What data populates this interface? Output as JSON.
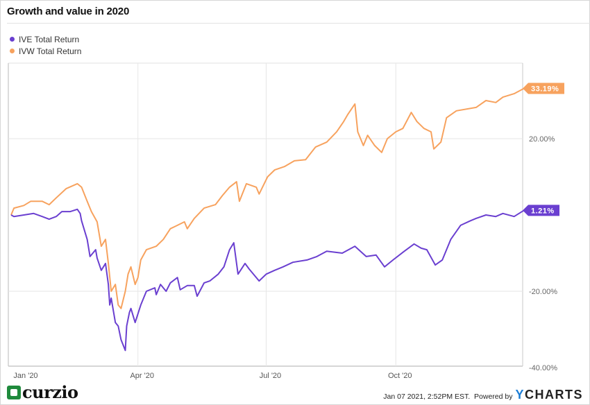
{
  "title": "Growth and value in 2020",
  "footer": {
    "timestamp": "Jan 07 2021, 2:52PM EST.",
    "powered_by": "Powered by",
    "brand_y": "Y",
    "brand_rest": "CHARTS",
    "logo_text": "curzio"
  },
  "chart_data": {
    "type": "line",
    "title": "Growth and value in 2020",
    "xlabel": "",
    "ylabel": "",
    "x_ticks": [
      {
        "date": "2020-01-01",
        "label": "Jan '20"
      },
      {
        "date": "2020-04-01",
        "label": "Apr '20"
      },
      {
        "date": "2020-07-01",
        "label": "Jul '20"
      },
      {
        "date": "2020-10-01",
        "label": "Oct '20"
      }
    ],
    "y_ticks": [
      {
        "value": 20,
        "label": "20.00%"
      },
      {
        "value": -20,
        "label": "-20.00%"
      },
      {
        "value": -40,
        "label": "-40.00%"
      }
    ],
    "ylim": [
      -40,
      40
    ],
    "xlim": [
      "2019-12-30",
      "2021-01-01"
    ],
    "grid": true,
    "legend_position": "top-left",
    "series": [
      {
        "name": "IVE Total Return",
        "color": "#6a3fd0",
        "end_label": "1.21%",
        "points": [
          [
            "2020-01-02",
            0
          ],
          [
            "2020-01-04",
            -0.4
          ],
          [
            "2020-01-11",
            0
          ],
          [
            "2020-01-18",
            0.4
          ],
          [
            "2020-01-24",
            -0.4
          ],
          [
            "2020-01-29",
            -1.1
          ],
          [
            "2020-02-03",
            -0.4
          ],
          [
            "2020-02-07",
            0.9
          ],
          [
            "2020-02-13",
            0.9
          ],
          [
            "2020-02-18",
            1.5
          ],
          [
            "2020-02-20",
            0.4
          ],
          [
            "2020-02-21",
            -1.5
          ],
          [
            "2020-02-25",
            -6.4
          ],
          [
            "2020-02-27",
            -10.9
          ],
          [
            "2020-03-02",
            -9.1
          ],
          [
            "2020-03-03",
            -11.3
          ],
          [
            "2020-03-06",
            -14.5
          ],
          [
            "2020-03-09",
            -12.7
          ],
          [
            "2020-03-11",
            -18.2
          ],
          [
            "2020-03-12",
            -23.6
          ],
          [
            "2020-03-13",
            -21.8
          ],
          [
            "2020-03-16",
            -28.2
          ],
          [
            "2020-03-18",
            -29.1
          ],
          [
            "2020-03-20",
            -32.7
          ],
          [
            "2020-03-23",
            -35.5
          ],
          [
            "2020-03-24",
            -29.1
          ],
          [
            "2020-03-26",
            -25.5
          ],
          [
            "2020-03-27",
            -24.5
          ],
          [
            "2020-03-30",
            -28.2
          ],
          [
            "2020-04-03",
            -23.6
          ],
          [
            "2020-04-07",
            -20
          ],
          [
            "2020-04-13",
            -19.1
          ],
          [
            "2020-04-14",
            -20.9
          ],
          [
            "2020-04-17",
            -18.2
          ],
          [
            "2020-04-21",
            -20
          ],
          [
            "2020-04-24",
            -17.8
          ],
          [
            "2020-04-29",
            -16.4
          ],
          [
            "2020-05-01",
            -19.6
          ],
          [
            "2020-05-06",
            -18.5
          ],
          [
            "2020-05-11",
            -18.5
          ],
          [
            "2020-05-13",
            -21.3
          ],
          [
            "2020-05-18",
            -17.8
          ],
          [
            "2020-05-22",
            -17.3
          ],
          [
            "2020-05-28",
            -15.5
          ],
          [
            "2020-06-01",
            -13.6
          ],
          [
            "2020-06-05",
            -9.1
          ],
          [
            "2020-06-08",
            -7.3
          ],
          [
            "2020-06-11",
            -15.5
          ],
          [
            "2020-06-16",
            -12.7
          ],
          [
            "2020-06-19",
            -14.2
          ],
          [
            "2020-06-26",
            -17.3
          ],
          [
            "2020-07-01",
            -15.5
          ],
          [
            "2020-07-07",
            -14.5
          ],
          [
            "2020-07-13",
            -13.6
          ],
          [
            "2020-07-20",
            -12.4
          ],
          [
            "2020-07-30",
            -11.8
          ],
          [
            "2020-08-06",
            -10.9
          ],
          [
            "2020-08-13",
            -9.5
          ],
          [
            "2020-08-24",
            -10
          ],
          [
            "2020-09-02",
            -8.2
          ],
          [
            "2020-09-10",
            -10.9
          ],
          [
            "2020-09-17",
            -10.5
          ],
          [
            "2020-09-23",
            -13.6
          ],
          [
            "2020-09-29",
            -11.8
          ],
          [
            "2020-10-07",
            -9.5
          ],
          [
            "2020-10-14",
            -7.6
          ],
          [
            "2020-10-19",
            -8.7
          ],
          [
            "2020-10-23",
            -9.1
          ],
          [
            "2020-10-29",
            -13.1
          ],
          [
            "2020-11-03",
            -11.8
          ],
          [
            "2020-11-09",
            -6.4
          ],
          [
            "2020-11-16",
            -2.7
          ],
          [
            "2020-11-23",
            -1.5
          ],
          [
            "2020-11-27",
            -0.9
          ],
          [
            "2020-12-04",
            0
          ],
          [
            "2020-12-11",
            -0.4
          ],
          [
            "2020-12-16",
            0.4
          ],
          [
            "2020-12-24",
            -0.4
          ],
          [
            "2020-12-31",
            1.21
          ]
        ]
      },
      {
        "name": "IVW Total Return",
        "color": "#f7a25e",
        "end_label": "33.19%",
        "points": [
          [
            "2020-01-02",
            0
          ],
          [
            "2020-01-04",
            1.8
          ],
          [
            "2020-01-11",
            2.5
          ],
          [
            "2020-01-16",
            3.6
          ],
          [
            "2020-01-24",
            3.6
          ],
          [
            "2020-01-29",
            2.7
          ],
          [
            "2020-02-03",
            4.5
          ],
          [
            "2020-02-10",
            6.9
          ],
          [
            "2020-02-18",
            8.2
          ],
          [
            "2020-02-21",
            7.3
          ],
          [
            "2020-02-25",
            3.6
          ],
          [
            "2020-02-28",
            0.9
          ],
          [
            "2020-03-03",
            -1.8
          ],
          [
            "2020-03-06",
            -8.2
          ],
          [
            "2020-03-09",
            -6.4
          ],
          [
            "2020-03-11",
            -12.7
          ],
          [
            "2020-03-13",
            -20
          ],
          [
            "2020-03-16",
            -18.2
          ],
          [
            "2020-03-18",
            -23.6
          ],
          [
            "2020-03-20",
            -24.5
          ],
          [
            "2020-03-23",
            -20
          ],
          [
            "2020-03-25",
            -15.5
          ],
          [
            "2020-03-27",
            -13.6
          ],
          [
            "2020-03-30",
            -18.2
          ],
          [
            "2020-04-01",
            -16.4
          ],
          [
            "2020-04-03",
            -11.8
          ],
          [
            "2020-04-07",
            -9.1
          ],
          [
            "2020-04-14",
            -8.2
          ],
          [
            "2020-04-19",
            -6.4
          ],
          [
            "2020-04-24",
            -3.6
          ],
          [
            "2020-04-29",
            -2.7
          ],
          [
            "2020-05-04",
            -1.8
          ],
          [
            "2020-05-06",
            -3.6
          ],
          [
            "2020-05-11",
            -0.9
          ],
          [
            "2020-05-18",
            1.8
          ],
          [
            "2020-05-26",
            2.7
          ],
          [
            "2020-05-31",
            5.1
          ],
          [
            "2020-06-05",
            7.3
          ],
          [
            "2020-06-10",
            8.7
          ],
          [
            "2020-06-12",
            3.6
          ],
          [
            "2020-06-17",
            8.2
          ],
          [
            "2020-06-24",
            7.3
          ],
          [
            "2020-06-26",
            5.5
          ],
          [
            "2020-07-02",
            10
          ],
          [
            "2020-07-07",
            11.8
          ],
          [
            "2020-07-14",
            12.7
          ],
          [
            "2020-07-21",
            14.2
          ],
          [
            "2020-07-29",
            14.5
          ],
          [
            "2020-08-05",
            17.8
          ],
          [
            "2020-08-13",
            19.1
          ],
          [
            "2020-08-20",
            21.8
          ],
          [
            "2020-08-25",
            24.5
          ],
          [
            "2020-08-28",
            26.4
          ],
          [
            "2020-09-02",
            29.1
          ],
          [
            "2020-09-04",
            21.8
          ],
          [
            "2020-09-08",
            18.2
          ],
          [
            "2020-09-11",
            20.9
          ],
          [
            "2020-09-16",
            18.2
          ],
          [
            "2020-09-21",
            16.4
          ],
          [
            "2020-09-25",
            20
          ],
          [
            "2020-10-01",
            21.8
          ],
          [
            "2020-10-06",
            22.7
          ],
          [
            "2020-10-12",
            26.9
          ],
          [
            "2020-10-16",
            24.5
          ],
          [
            "2020-10-21",
            22.7
          ],
          [
            "2020-10-26",
            21.8
          ],
          [
            "2020-10-28",
            17.3
          ],
          [
            "2020-11-02",
            19.1
          ],
          [
            "2020-11-06",
            25.5
          ],
          [
            "2020-11-13",
            27.3
          ],
          [
            "2020-11-27",
            28.2
          ],
          [
            "2020-12-04",
            30
          ],
          [
            "2020-12-11",
            29.5
          ],
          [
            "2020-12-16",
            30.9
          ],
          [
            "2020-12-24",
            31.8
          ],
          [
            "2020-12-31",
            33.19
          ]
        ]
      }
    ]
  }
}
